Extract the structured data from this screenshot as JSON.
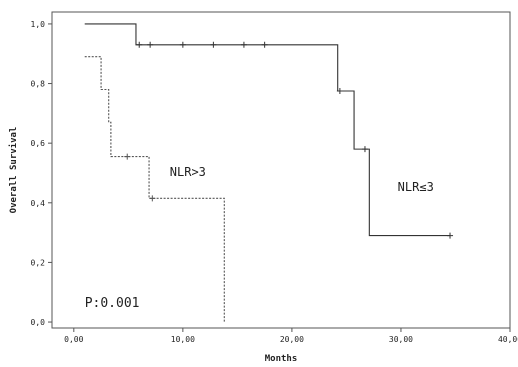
{
  "chart_data": {
    "type": "line",
    "title": "",
    "xlabel": "Months",
    "ylabel": "Overall Survival",
    "xlim": [
      -2,
      40
    ],
    "ylim": [
      -0.02,
      1.04
    ],
    "xticks": [
      0,
      10,
      20,
      30,
      40
    ],
    "xtick_labels": [
      "0,00",
      "10,00",
      "20,00",
      "30,00",
      "40,00"
    ],
    "yticks": [
      0.0,
      0.2,
      0.4,
      0.6,
      0.8,
      1.0
    ],
    "ytick_labels": [
      "0,0",
      "0,2",
      "0,4",
      "0,6",
      "0,8",
      "1,0"
    ],
    "grid": false,
    "series": [
      {
        "name": "NLR≤3",
        "line_style": "solid",
        "color": "#333333",
        "steps": [
          [
            1.0,
            1.0
          ],
          [
            5.7,
            0.93
          ],
          [
            24.2,
            0.775
          ],
          [
            25.7,
            0.58
          ],
          [
            27.1,
            0.29
          ],
          [
            34.5,
            0.29
          ]
        ],
        "censored": [
          [
            6.0,
            0.93
          ],
          [
            7.0,
            0.93
          ],
          [
            10.0,
            0.93
          ],
          [
            12.8,
            0.93
          ],
          [
            15.6,
            0.93
          ],
          [
            17.5,
            0.93
          ],
          [
            24.4,
            0.775
          ],
          [
            26.7,
            0.58
          ],
          [
            34.5,
            0.29
          ]
        ]
      },
      {
        "name": "NLR>3",
        "line_style": "dashed",
        "color": "#555555",
        "steps": [
          [
            1.0,
            0.89
          ],
          [
            2.5,
            0.78
          ],
          [
            3.2,
            0.67
          ],
          [
            3.4,
            0.555
          ],
          [
            6.9,
            0.415
          ],
          [
            13.8,
            0.0
          ]
        ],
        "censored": [
          [
            4.9,
            0.555
          ],
          [
            7.2,
            0.415
          ]
        ]
      }
    ],
    "annotations": [
      {
        "text": "NLR>3",
        "x": 8.8,
        "y": 0.49
      },
      {
        "text": "NLR≤3",
        "x": 29.7,
        "y": 0.44
      },
      {
        "text": "P:0.001",
        "x": 1.0,
        "y": 0.05
      }
    ]
  }
}
